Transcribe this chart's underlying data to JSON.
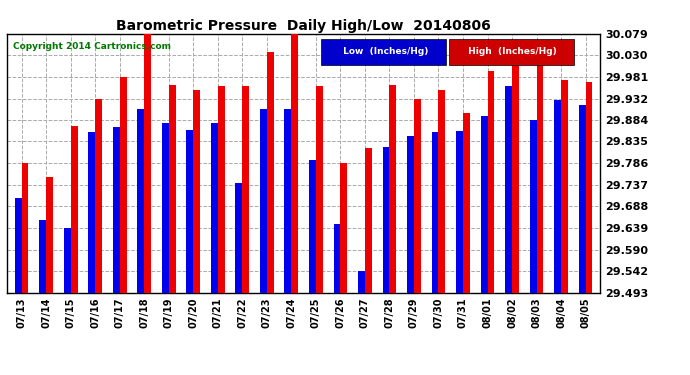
{
  "title": "Barometric Pressure  Daily High/Low  20140806",
  "copyright": "Copyright 2014 Cartronics.com",
  "dates": [
    "07/13",
    "07/14",
    "07/15",
    "07/16",
    "07/17",
    "07/18",
    "07/19",
    "07/20",
    "07/21",
    "07/22",
    "07/23",
    "07/24",
    "07/25",
    "07/26",
    "07/27",
    "07/28",
    "07/29",
    "07/30",
    "07/31",
    "08/01",
    "08/02",
    "08/03",
    "08/04",
    "08/05"
  ],
  "low": [
    29.706,
    29.657,
    29.64,
    29.857,
    29.868,
    29.908,
    29.877,
    29.86,
    29.877,
    29.74,
    29.908,
    29.908,
    29.793,
    29.648,
    29.542,
    29.823,
    29.848,
    29.857,
    29.858,
    29.893,
    29.96,
    29.884,
    29.93,
    29.918
  ],
  "high": [
    29.786,
    29.754,
    29.869,
    29.932,
    29.981,
    30.079,
    29.963,
    29.952,
    29.96,
    29.96,
    30.038,
    30.079,
    29.96,
    29.786,
    29.82,
    29.964,
    29.932,
    29.951,
    29.9,
    29.994,
    30.058,
    30.008,
    29.975,
    29.969
  ],
  "ylim_min": 29.493,
  "ylim_max": 30.079,
  "yticks": [
    29.493,
    29.542,
    29.59,
    29.639,
    29.688,
    29.737,
    29.786,
    29.835,
    29.884,
    29.932,
    29.981,
    30.03,
    30.079
  ],
  "bar_width": 0.28,
  "low_color": "#0000EE",
  "high_color": "#EE0000",
  "bg_color": "#FFFFFF",
  "grid_color": "#AAAAAA",
  "title_color": "#000000",
  "copyright_color": "#007700",
  "border_color": "#000000",
  "legend_low_bg": "#0000CC",
  "legend_high_bg": "#CC0000",
  "legend_text_color": "#FFFFFF"
}
